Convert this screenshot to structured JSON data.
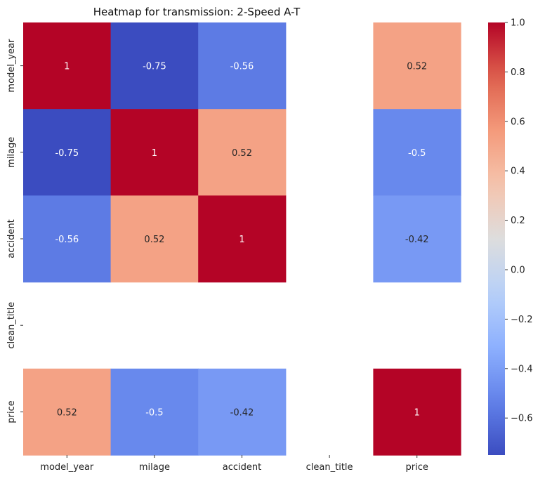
{
  "chart_data": {
    "type": "heatmap",
    "title": "Heatmap for transmission: 2-Speed A-T",
    "xlabel": "",
    "ylabel": "",
    "x_categories": [
      "model_year",
      "milage",
      "accident",
      "clean_title",
      "price"
    ],
    "y_categories": [
      "model_year",
      "milage",
      "accident",
      "clean_title",
      "price"
    ],
    "values": [
      [
        1,
        -0.75,
        -0.56,
        null,
        0.52
      ],
      [
        -0.75,
        1,
        0.52,
        null,
        -0.5
      ],
      [
        -0.56,
        0.52,
        1,
        null,
        -0.42
      ],
      [
        null,
        null,
        null,
        null,
        null
      ],
      [
        0.52,
        -0.5,
        -0.42,
        null,
        1
      ]
    ],
    "cell_labels": [
      [
        "1",
        "-0.75",
        "-0.56",
        "",
        "0.52"
      ],
      [
        "-0.75",
        "1",
        "0.52",
        "",
        "-0.5"
      ],
      [
        "-0.56",
        "0.52",
        "1",
        "",
        "-0.42"
      ],
      [
        "",
        "",
        "",
        "",
        ""
      ],
      [
        "0.52",
        "-0.5",
        "-0.42",
        "",
        "1"
      ]
    ],
    "colormap": "coolwarm",
    "vmin": -0.75,
    "vmax": 1,
    "colorbar_ticks": [
      1.0,
      0.8,
      0.6,
      0.4,
      0.2,
      0.0,
      -0.2,
      -0.4,
      -0.6
    ],
    "colorbar_tick_labels": [
      "1.0",
      "0.8",
      "0.6",
      "0.4",
      "0.2",
      "0.0",
      "−0.2",
      "−0.4",
      "−0.6"
    ],
    "grid": false,
    "legend": "colorbar-right"
  }
}
